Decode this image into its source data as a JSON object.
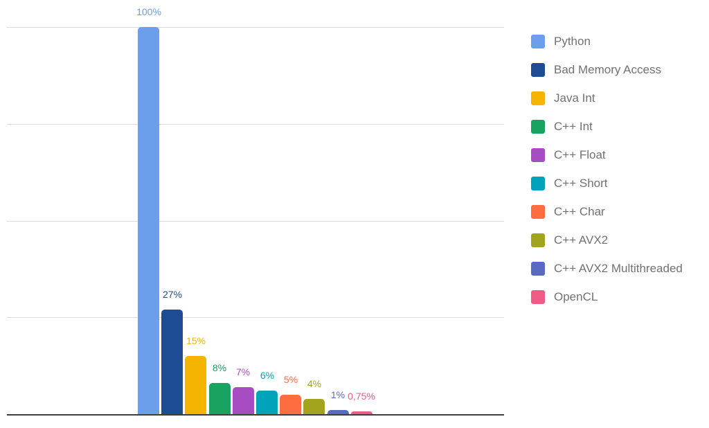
{
  "chart_data": {
    "type": "bar",
    "categories": [
      "Python",
      "Bad Memory Access",
      "Java Int",
      "C++ Int",
      "C++ Float",
      "C++ Short",
      "C++ Char",
      "C++ AVX2",
      "C++ AVX2 Multithreaded",
      "OpenCL"
    ],
    "values": [
      100,
      27,
      15,
      8,
      7,
      6,
      5,
      4,
      1,
      0.75
    ],
    "value_labels": [
      "100%",
      "27%",
      "15%",
      "8%",
      "7%",
      "6%",
      "5%",
      "4%",
      "1%",
      "0,75%"
    ],
    "colors": [
      "#6d9eeb",
      "#1e4c94",
      "#f4b400",
      "#1aa260",
      "#a84cc4",
      "#00a3ba",
      "#fc6d3f",
      "#a3a41d",
      "#5a69c2",
      "#ee5b85"
    ],
    "xlabel": "",
    "ylabel": "",
    "ylim": [
      0,
      100
    ],
    "gridline_values": [
      25,
      50,
      75,
      100
    ],
    "grid": true,
    "legend_position": "right",
    "grid_color": "#dadada",
    "axis_color": "#3d3d3d",
    "legend_text_color": "#717171",
    "background_color": "#ffffff"
  }
}
